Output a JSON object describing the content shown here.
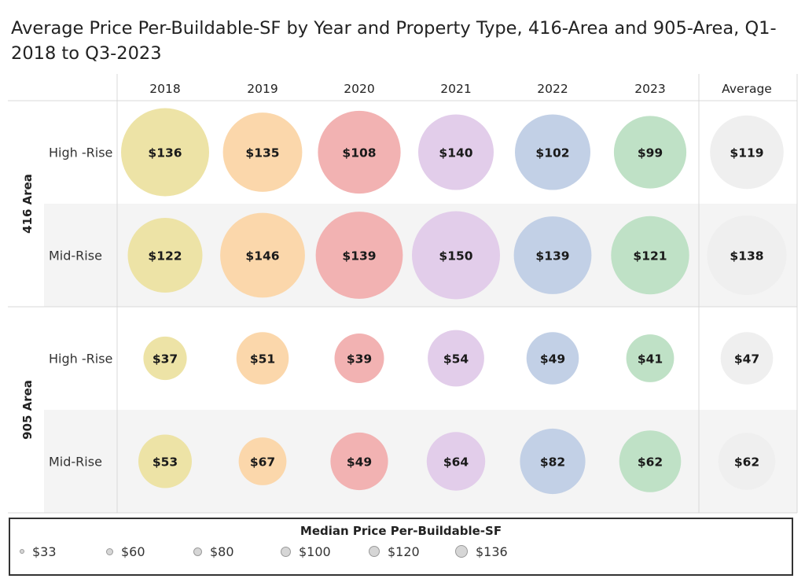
{
  "title": "Average Price Per-Buildable-SF by Year and Property Type, 416-Area and 905-Area, Q1-2018 to Q3-2023",
  "chart_data": {
    "type": "bubble-table",
    "title": "Average Price Per-Buildable-SF by Year and Property Type, 416-Area and 905-Area, Q1-2018 to Q3-2023",
    "columns": [
      "2018",
      "2019",
      "2020",
      "2021",
      "2022",
      "2023",
      "Average"
    ],
    "column_colors": [
      "#ede3a6",
      "#fbd7ab",
      "#f2b2b2",
      "#e2cdea",
      "#c2d0e6",
      "#bfe1c6",
      "#efefef"
    ],
    "groups": [
      {
        "label": "416 Area",
        "rows": [
          {
            "label": "High -Rise",
            "labels": [
              "$136",
              "$135",
              "$108",
              "$140",
              "$102",
              "$99",
              "$119"
            ],
            "size_values": [
              136,
              110,
              120,
              100,
              100,
              92,
              95
            ]
          },
          {
            "label": "Mid-Rise",
            "labels": [
              "$122",
              "$146",
              "$139",
              "$150",
              "$139",
              "$121",
              "$138"
            ],
            "size_values": [
              98,
              126,
              133,
              136,
              106,
              107,
              111
            ]
          }
        ]
      },
      {
        "label": "905 Area",
        "rows": [
          {
            "label": "High -Rise",
            "labels": [
              "$37",
              "$51",
              "$39",
              "$54",
              "$49",
              "$41",
              "$47"
            ],
            "size_values": [
              33,
              48,
              43,
              56,
              48,
              40,
              48
            ]
          },
          {
            "label": "Mid-Rise",
            "labels": [
              "$53",
              "$67",
              "$49",
              "$64",
              "$82",
              "$62",
              "$62"
            ],
            "size_values": [
              50,
              40,
              58,
              60,
              75,
              67,
              57
            ]
          }
        ]
      }
    ],
    "legend": {
      "title": "Median Price Per-Buildable-SF",
      "items": [
        {
          "label": "$33",
          "value": 33
        },
        {
          "label": "$60",
          "value": 60
        },
        {
          "label": "$80",
          "value": 80
        },
        {
          "label": "$100",
          "value": 100
        },
        {
          "label": "$120",
          "value": 120
        },
        {
          "label": "$136",
          "value": 136
        }
      ]
    }
  }
}
